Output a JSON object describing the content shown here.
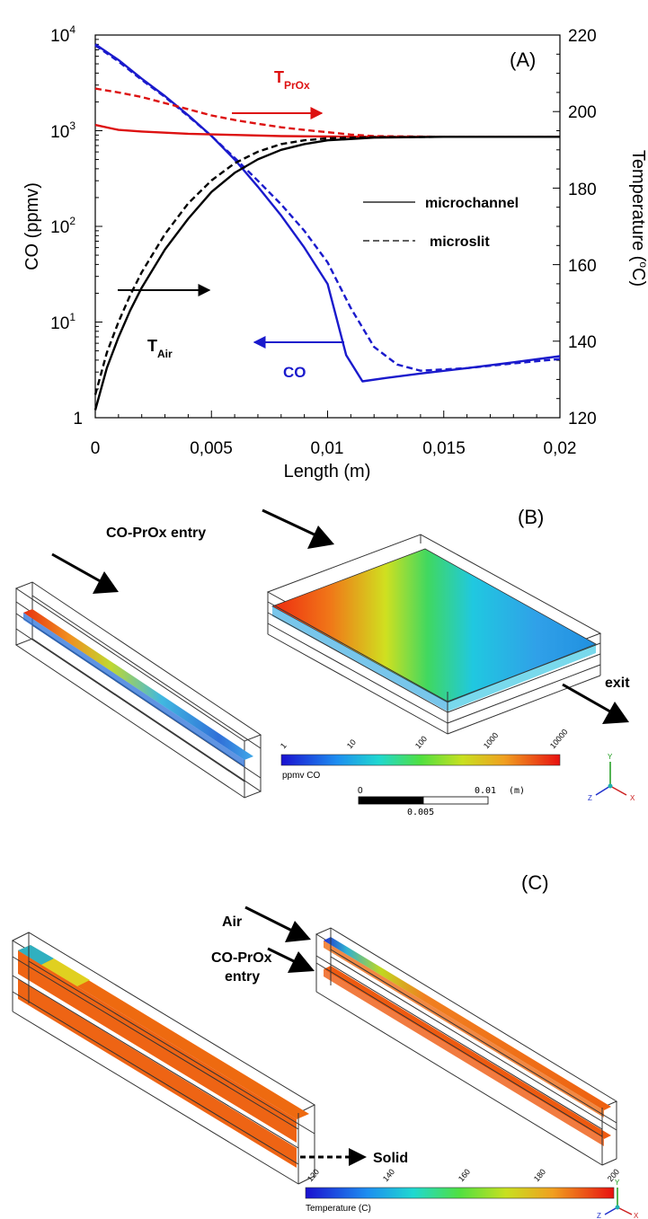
{
  "chart_data": {
    "type": "line",
    "panel_label": "(A)",
    "xlabel": "Length (m)",
    "ylabel": "CO (ppmv)",
    "y2label_main": "Temperature (",
    "y2label_sup": "o",
    "y2label_end": "C)",
    "xlim": [
      0,
      0.02
    ],
    "ylim": [
      1,
      10000
    ],
    "y_scale": "log",
    "y2lim": [
      120,
      220
    ],
    "x_ticks": [
      "0",
      "0,005",
      "0,01",
      "0,015",
      "0,02"
    ],
    "y_ticks": [
      {
        "base": "1",
        "exp": ""
      },
      {
        "base": "10",
        "exp": "1"
      },
      {
        "base": "10",
        "exp": "2"
      },
      {
        "base": "10",
        "exp": "3"
      },
      {
        "base": "10",
        "exp": "4"
      }
    ],
    "y2_ticks": [
      "120",
      "140",
      "160",
      "180",
      "200",
      "220"
    ],
    "legend": {
      "solid": "microchannel",
      "dashed": "microslit",
      "placement": "right-middle"
    },
    "annotations": {
      "tprox_main": "T",
      "tprox_sub": "PrOx",
      "tair_main": "T",
      "tair_sub": "Air",
      "co": "CO"
    },
    "colors": {
      "co": "#1a1acc",
      "tprox": "#dd1111",
      "tair": "#000000"
    },
    "series": [
      {
        "quantity": "CO",
        "axis": "left",
        "style": "solid",
        "color": "#1a1acc",
        "x": [
          0,
          0.001,
          0.002,
          0.003,
          0.004,
          0.005,
          0.006,
          0.007,
          0.008,
          0.009,
          0.01,
          0.0108,
          0.0115,
          0.0125,
          0.014,
          0.016,
          0.018,
          0.02
        ],
        "y": [
          8000,
          5500,
          3500,
          2300,
          1450,
          880,
          500,
          260,
          130,
          60,
          25,
          4.5,
          2.4,
          2.6,
          2.9,
          3.3,
          3.8,
          4.4
        ]
      },
      {
        "quantity": "CO",
        "axis": "left",
        "style": "dashed",
        "color": "#1a1acc",
        "x": [
          0,
          0.001,
          0.002,
          0.003,
          0.004,
          0.005,
          0.006,
          0.007,
          0.008,
          0.009,
          0.01,
          0.011,
          0.012,
          0.013,
          0.014,
          0.016,
          0.018,
          0.02
        ],
        "y": [
          7800,
          5300,
          3400,
          2250,
          1420,
          880,
          520,
          300,
          170,
          90,
          42,
          14,
          5.5,
          3.6,
          3.1,
          3.3,
          3.7,
          4.1
        ]
      },
      {
        "quantity": "T_PrOx",
        "axis": "right",
        "style": "solid",
        "color": "#dd1111",
        "x": [
          0,
          0.001,
          0.002,
          0.004,
          0.006,
          0.008,
          0.01,
          0.012,
          0.015,
          0.02
        ],
        "y": [
          196.5,
          195.2,
          194.8,
          194.2,
          193.9,
          193.6,
          193.5,
          193.4,
          193.4,
          193.4
        ]
      },
      {
        "quantity": "T_PrOx",
        "axis": "right",
        "style": "dashed",
        "color": "#dd1111",
        "x": [
          0,
          0.001,
          0.002,
          0.003,
          0.004,
          0.005,
          0.006,
          0.007,
          0.008,
          0.009,
          0.01,
          0.011,
          0.012,
          0.015,
          0.02
        ],
        "y": [
          206.0,
          205.0,
          203.8,
          202.2,
          200.6,
          199.0,
          197.8,
          196.8,
          195.9,
          195.2,
          194.6,
          194.0,
          193.6,
          193.4,
          193.4
        ]
      },
      {
        "quantity": "T_Air",
        "axis": "right",
        "style": "solid",
        "color": "#000000",
        "x": [
          0,
          0.0005,
          0.001,
          0.0015,
          0.002,
          0.003,
          0.004,
          0.005,
          0.006,
          0.007,
          0.008,
          0.009,
          0.01,
          0.012,
          0.015,
          0.02
        ],
        "y": [
          122.0,
          133.0,
          141.0,
          148.0,
          154.0,
          164.0,
          172.0,
          179.0,
          184.0,
          187.5,
          190.0,
          191.5,
          192.5,
          193.2,
          193.4,
          193.4
        ]
      },
      {
        "quantity": "T_Air",
        "axis": "right",
        "style": "dashed",
        "color": "#000000",
        "x": [
          0,
          0.0005,
          0.001,
          0.0015,
          0.002,
          0.003,
          0.004,
          0.005,
          0.006,
          0.007,
          0.008,
          0.009,
          0.01,
          0.012,
          0.015,
          0.02
        ],
        "y": [
          126.0,
          137.0,
          145.0,
          152.0,
          158.0,
          168.0,
          176.0,
          182.0,
          186.5,
          189.5,
          191.5,
          192.5,
          193.0,
          193.3,
          193.4,
          193.4
        ]
      }
    ]
  },
  "panel_b": {
    "label": "(B)",
    "entry_label": "CO-PrOx entry",
    "exit_label": "exit",
    "colorbar_ticks": [
      "1",
      "10",
      "100",
      "1000",
      "10000"
    ],
    "colorbar_caption": "ppmv CO",
    "scale_left": "0",
    "scale_right": "0.01",
    "scale_unit": "(m)",
    "scale_mid": "0.005",
    "axis_y": "Y",
    "axis_x": "X",
    "axis_z": "Z"
  },
  "panel_c": {
    "label": "(C)",
    "air_label": "Air",
    "entry_line1": "CO-PrOx",
    "entry_line2": "entry",
    "solid_label": "Solid",
    "colorbar_ticks": [
      "120",
      "140",
      "160",
      "180",
      "200"
    ],
    "colorbar_caption": "Temperature (C)",
    "axis_y": "Y",
    "axis_x": "X",
    "axis_z": "Z"
  }
}
